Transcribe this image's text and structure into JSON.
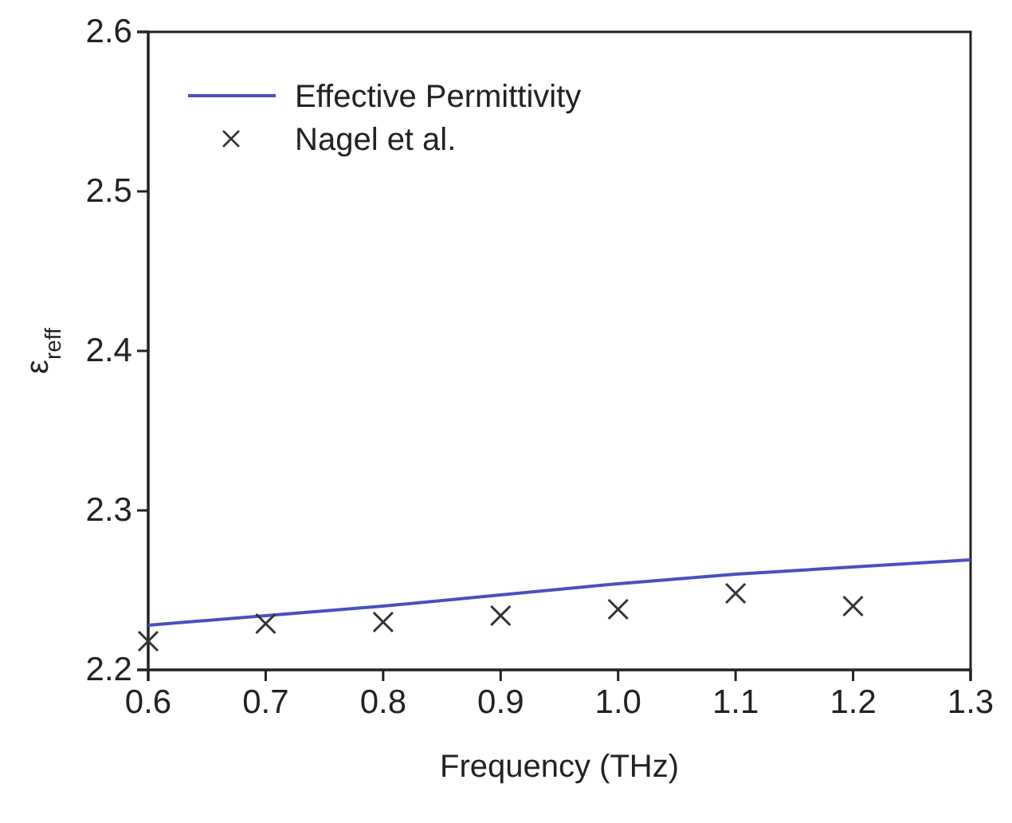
{
  "chart_data": {
    "type": "line",
    "xlabel": "Frequency (THz)",
    "ylabel": "ε$_{reff}$",
    "xlim": [
      0.6,
      1.3
    ],
    "xticks": [
      {
        "value": 0.6,
        "label": "0.6"
      },
      {
        "value": 0.7,
        "label": "0.7"
      },
      {
        "value": 0.8,
        "label": "0.8"
      },
      {
        "value": 0.9,
        "label": "0.9"
      },
      {
        "value": 1.0,
        "label": "1.0"
      },
      {
        "value": 1.1,
        "label": "1.1"
      },
      {
        "value": 1.2,
        "label": "1.2"
      },
      {
        "value": 1.3,
        "label": "1.3"
      }
    ],
    "ylim": [
      2.2,
      2.6
    ],
    "yticks": [
      {
        "value": 2.2,
        "label": "2.2"
      },
      {
        "value": 2.3,
        "label": "2.3"
      },
      {
        "value": 2.4,
        "label": "2.4"
      },
      {
        "value": 2.5,
        "label": "2.5"
      },
      {
        "value": 2.6,
        "label": "2.6"
      }
    ],
    "grid": false,
    "legend": "top left",
    "series": [
      {
        "name": "Effective Permittivity",
        "type": "line",
        "color": "#4a4fc0",
        "x": [
          0.6,
          0.8,
          1.0,
          1.1,
          1.3
        ],
        "values": [
          2.228,
          2.24,
          2.254,
          2.26,
          2.269
        ],
        "marker": "none",
        "line_style": "solid"
      },
      {
        "name": "Nagel et al.",
        "type": "scatter",
        "color": "#333333",
        "x": [
          0.6,
          0.7,
          0.8,
          0.9,
          1.0,
          1.1,
          1.2
        ],
        "values": [
          2.218,
          2.229,
          2.23,
          2.234,
          2.238,
          2.248,
          2.24
        ],
        "marker": "cross"
      }
    ]
  }
}
